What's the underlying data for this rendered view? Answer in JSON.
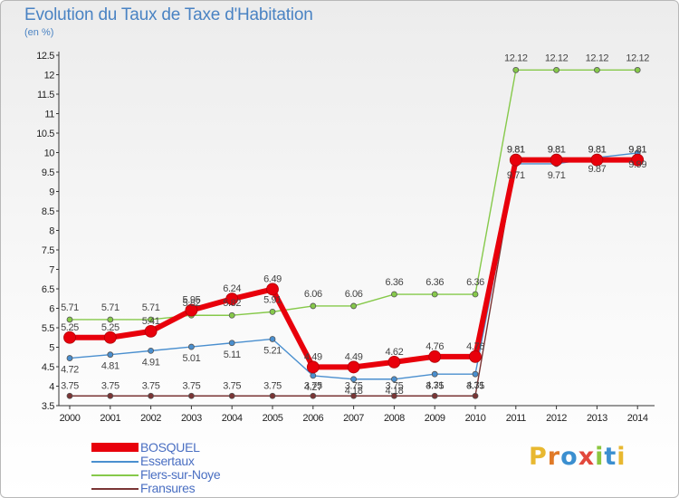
{
  "title": "Evolution du Taux de Taxe d'Habitation",
  "unit_label": "(en %)",
  "logo": {
    "letters": [
      "P",
      "r",
      "o",
      "x",
      "i",
      "t",
      "i"
    ],
    "colors": [
      "#e8b830",
      "#e07a28",
      "#3b8fd0",
      "#e2483c",
      "#8cc63f",
      "#3b8fd0",
      "#e8b830"
    ]
  },
  "chart_data": {
    "type": "line",
    "categories": [
      "2000",
      "2001",
      "2002",
      "2003",
      "2004",
      "2005",
      "2006",
      "2007",
      "2008",
      "2009",
      "2010",
      "2011",
      "2012",
      "2013",
      "2014"
    ],
    "ylim": [
      3.5,
      12.5
    ],
    "yticks": [
      "3.5",
      "4",
      "4.5",
      "5",
      "5.5",
      "6",
      "6.5",
      "7",
      "7.5",
      "8",
      "8.5",
      "9",
      "9.5",
      "10",
      "10.5",
      "11",
      "11.5",
      "12",
      "12.5"
    ],
    "grid": false,
    "legend_position": "bottom-left",
    "series": [
      {
        "name": "BOSQUEL",
        "color": "#e8000b",
        "emphasis": true,
        "values": [
          5.25,
          5.25,
          5.41,
          5.95,
          6.24,
          6.49,
          4.49,
          4.49,
          4.62,
          4.76,
          4.76,
          9.81,
          9.81,
          9.81,
          9.81
        ],
        "labels": [
          "5.25",
          "5.25",
          "5.41",
          "5.95",
          "6.24",
          "6.49",
          "4.49",
          "4.49",
          "4.62",
          "4.76",
          "4.76",
          "9.81",
          "9.81",
          "9.81",
          "9.81"
        ]
      },
      {
        "name": "Essertaux",
        "color": "#4a8fcf",
        "values": [
          4.72,
          4.81,
          4.91,
          5.01,
          5.11,
          5.21,
          4.27,
          4.18,
          4.18,
          4.31,
          4.31,
          9.71,
          9.71,
          9.87,
          9.99
        ],
        "labels": [
          "4.72",
          "4.81",
          "4.91",
          "5.01",
          "5.11",
          "5.21",
          "4.27",
          "4.18",
          "4.18",
          "4.31",
          "4.31",
          "9.71",
          "9.71",
          "9.87",
          "9.99"
        ]
      },
      {
        "name": "Flers-sur-Noye",
        "color": "#86c94a",
        "values": [
          5.71,
          5.71,
          5.71,
          5.82,
          5.82,
          5.91,
          6.06,
          6.06,
          6.36,
          6.36,
          6.36,
          12.12,
          12.12,
          12.12,
          12.12
        ],
        "labels": [
          "5.71",
          "5.71",
          "5.71",
          "5.82",
          "5.82",
          "5.91",
          "6.06",
          "6.06",
          "6.36",
          "6.36",
          "6.36",
          "12.12",
          "12.12",
          "12.12",
          "12.12"
        ]
      },
      {
        "name": "Fransures",
        "color": "#7a3535",
        "values": [
          3.75,
          3.75,
          3.75,
          3.75,
          3.75,
          3.75,
          3.75,
          3.75,
          3.75,
          3.75,
          3.75,
          9.81,
          9.81,
          9.81,
          9.81
        ],
        "labels": [
          "3.75",
          "3.75",
          "3.75",
          "3.75",
          "3.75",
          "3.75",
          "3.75",
          "3.75",
          "3.75",
          "3.75",
          "3.75",
          "9.81",
          "9.81",
          "9.81",
          "9.81"
        ]
      }
    ]
  }
}
